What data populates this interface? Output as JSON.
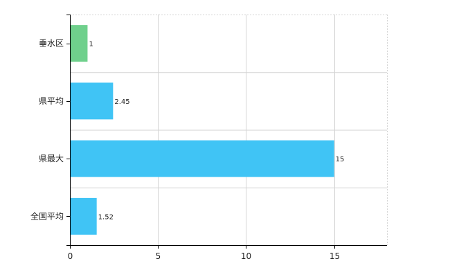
{
  "chart_data": {
    "type": "bar",
    "orientation": "horizontal",
    "categories": [
      "垂水区",
      "県平均",
      "県最大",
      "全国平均"
    ],
    "values": [
      1,
      2.45,
      15,
      1.52
    ],
    "data_labels": [
      "1",
      "2.45",
      "15",
      "1.52"
    ],
    "bar_colors": [
      "#6fd08c",
      "#40c4f5",
      "#40c4f5",
      "#40c4f5"
    ],
    "xlim": [
      0,
      18
    ],
    "xticks": [
      0,
      5,
      10,
      15
    ],
    "xtick_labels": [
      "0",
      "5",
      "10",
      "15"
    ],
    "grid": true,
    "grid_color": "#d3d3d3",
    "axis_color": "#000000",
    "legend": "none"
  }
}
